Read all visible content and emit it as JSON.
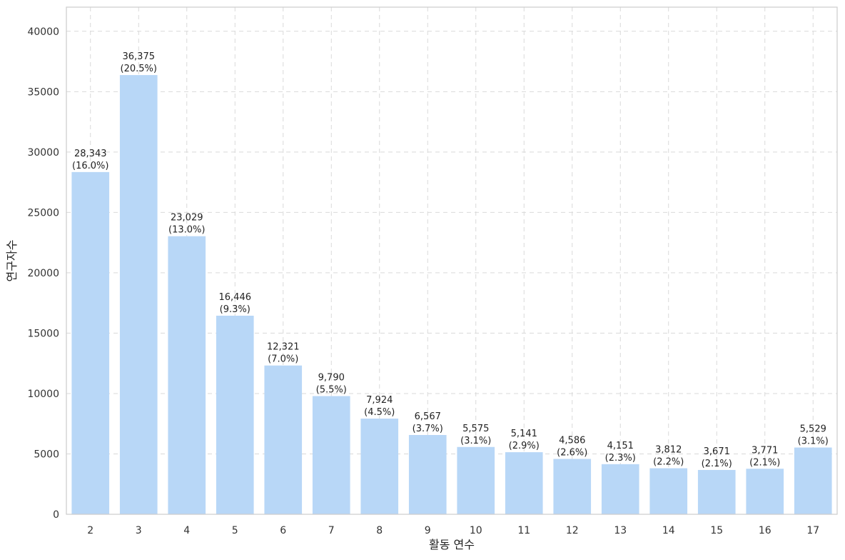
{
  "chart_data": {
    "type": "bar",
    "categories": [
      "2",
      "3",
      "4",
      "5",
      "6",
      "7",
      "8",
      "9",
      "10",
      "11",
      "12",
      "13",
      "14",
      "15",
      "16",
      "17"
    ],
    "values": [
      28343,
      36375,
      23029,
      16446,
      12321,
      9790,
      7924,
      6567,
      5575,
      5141,
      4586,
      4151,
      3812,
      3671,
      3771,
      5529
    ],
    "value_labels": [
      "28,343",
      "36,375",
      "23,029",
      "16,446",
      "12,321",
      "9,790",
      "7,924",
      "6,567",
      "5,575",
      "5,141",
      "4,586",
      "4,151",
      "3,812",
      "3,671",
      "3,771",
      "5,529"
    ],
    "percent_labels": [
      "(16.0%)",
      "(20.5%)",
      "(13.0%)",
      "(9.3%)",
      "(7.0%)",
      "(5.5%)",
      "(4.5%)",
      "(3.7%)",
      "(3.1%)",
      "(2.9%)",
      "(2.6%)",
      "(2.3%)",
      "(2.2%)",
      "(2.1%)",
      "(2.1%)",
      "(3.1%)"
    ],
    "title": "",
    "xlabel": "활동 연수",
    "ylabel": "연구자수",
    "ylim": [
      0,
      42000
    ],
    "yticks": [
      0,
      5000,
      10000,
      15000,
      20000,
      25000,
      30000,
      35000,
      40000
    ],
    "grid": true,
    "colors": {
      "bar": "#b8d7f7",
      "grid": "#d9d9d9",
      "frame": "#cccccc",
      "text": "#222222"
    }
  }
}
